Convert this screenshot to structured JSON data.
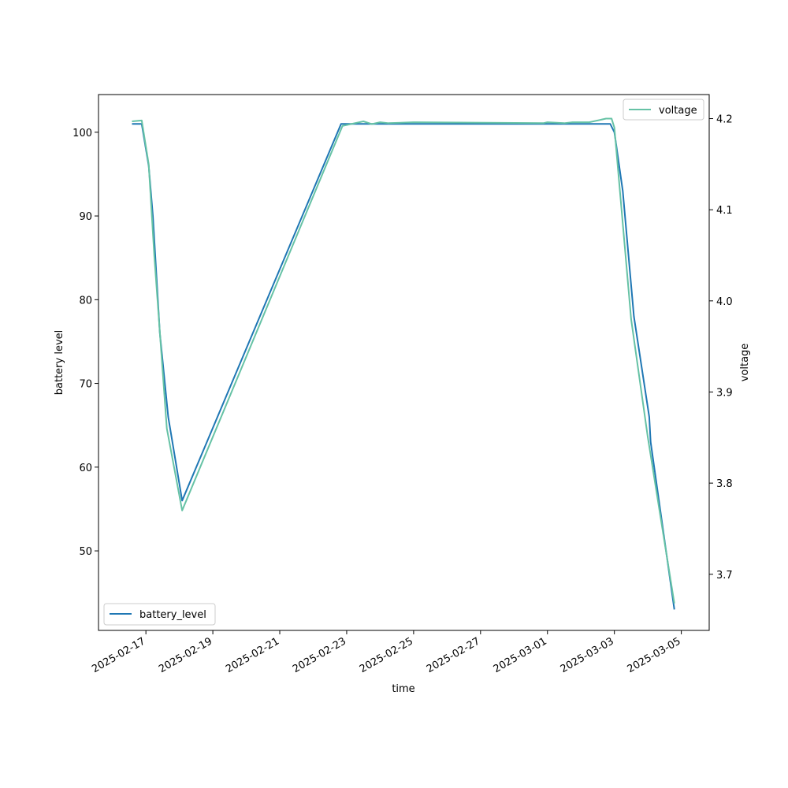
{
  "chart_data": {
    "type": "line",
    "xlabel": "time",
    "ylabel": "battery level",
    "y2label": "voltage",
    "x_tick_labels": [
      "2025-02-17",
      "2025-02-19",
      "2025-02-21",
      "2025-02-23",
      "2025-02-25",
      "2025-02-27",
      "2025-03-01",
      "2025-03-03",
      "2025-03-05"
    ],
    "xlim": [
      "2025-02-15 14:00",
      "2025-03-05 20:00"
    ],
    "ylim": [
      40.5,
      104.5
    ],
    "y_ticks": [
      50,
      60,
      70,
      80,
      90,
      100
    ],
    "y2lim": [
      3.6384,
      4.2264
    ],
    "y2_ticks": [
      3.7,
      3.8,
      3.9,
      4.0,
      4.1,
      4.2
    ],
    "grid": false,
    "series": [
      {
        "name": "battery_level",
        "axis": "left",
        "color": "#1f77b4",
        "legend": "lower-left",
        "points": [
          [
            "2025-02-16 14:00",
            101
          ],
          [
            "2025-02-16 21:00",
            101
          ],
          [
            "2025-02-17 02:00",
            96
          ],
          [
            "2025-02-17 05:00",
            90
          ],
          [
            "2025-02-17 10:00",
            76
          ],
          [
            "2025-02-17 16:00",
            66
          ],
          [
            "2025-02-18 02:00",
            56
          ],
          [
            "2025-02-22 20:00",
            101
          ],
          [
            "2025-03-02 21:00",
            101
          ],
          [
            "2025-03-03 00:00",
            100
          ],
          [
            "2025-03-03 06:00",
            93
          ],
          [
            "2025-03-03 14:00",
            78
          ],
          [
            "2025-03-04 01:00",
            66
          ],
          [
            "2025-03-04 02:00",
            63
          ],
          [
            "2025-03-04 19:00",
            43
          ]
        ]
      },
      {
        "name": "voltage",
        "axis": "right",
        "color": "#66c2a5",
        "legend": "upper-right",
        "points": [
          [
            "2025-02-16 14:00",
            4.197
          ],
          [
            "2025-02-16 21:00",
            4.198
          ],
          [
            "2025-02-17 02:00",
            4.15
          ],
          [
            "2025-02-17 06:00",
            4.05
          ],
          [
            "2025-02-17 15:00",
            3.86
          ],
          [
            "2025-02-18 02:00",
            3.77
          ],
          [
            "2025-02-22 21:00",
            4.192
          ],
          [
            "2025-02-23 12:00",
            4.197
          ],
          [
            "2025-02-23 18:00",
            4.194
          ],
          [
            "2025-02-24 00:00",
            4.196
          ],
          [
            "2025-02-24 06:00",
            4.195
          ],
          [
            "2025-02-25 00:00",
            4.196
          ],
          [
            "2025-02-28 21:00",
            4.195
          ],
          [
            "2025-02-29 00:00",
            4.196
          ],
          [
            "2025-02-29 12:00",
            4.195
          ],
          [
            "2025-02-29 18:00",
            4.196
          ],
          [
            "2025-03-02 06:00",
            4.196
          ],
          [
            "2025-03-02 18:00",
            4.2
          ],
          [
            "2025-03-02 22:00",
            4.2
          ],
          [
            "2025-03-03 00:00",
            4.19
          ],
          [
            "2025-03-03 12:00",
            3.98
          ],
          [
            "2025-03-04 00:00",
            3.85
          ],
          [
            "2025-03-04 19:00",
            3.668
          ]
        ]
      }
    ]
  }
}
